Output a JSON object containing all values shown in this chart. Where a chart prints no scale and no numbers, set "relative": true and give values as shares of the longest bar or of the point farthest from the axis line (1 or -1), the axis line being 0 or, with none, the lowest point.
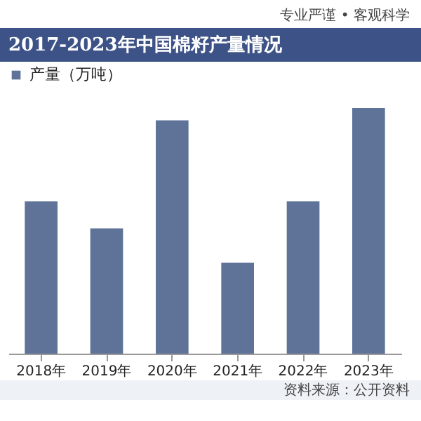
{
  "chart_data": {
    "type": "bar",
    "title": "2017-2023年中国棉籽产量情况",
    "relative": true,
    "legend": "top",
    "categories": [
      "2018年",
      "2019年",
      "2020年",
      "2021年",
      "2022年",
      "2023年"
    ],
    "series": [
      {
        "name": "产量（万吨）",
        "color": "#5f7399",
        "values": [
          0.62,
          0.51,
          0.95,
          0.37,
          0.62,
          1
        ]
      }
    ],
    "annotations": [
      "专业严谨 • 客观科学",
      "资料来源：公开资料"
    ]
  }
}
